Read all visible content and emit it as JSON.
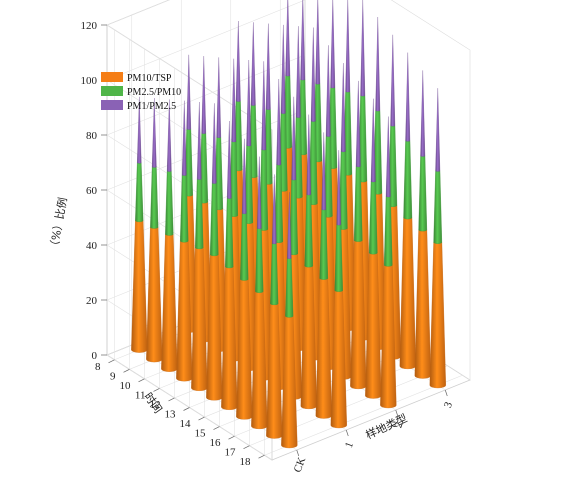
{
  "chart_data": {
    "type": "bar",
    "subtype": "3d-stacked-cones",
    "title": "",
    "x_axis": {
      "label": "样地类型",
      "categories": [
        "CK",
        "1",
        "2",
        "3"
      ]
    },
    "y_axis": {
      "label": "时间",
      "categories": [
        "8",
        "9",
        "10",
        "11",
        "12",
        "13",
        "14",
        "15",
        "16",
        "17",
        "18"
      ]
    },
    "z_axis": {
      "label": "（%）比例",
      "range": [
        0,
        120
      ],
      "ticks": [
        "0",
        "20",
        "40",
        "60",
        "80",
        "100",
        "120"
      ]
    },
    "grid": true,
    "legend": {
      "position": "top-left",
      "entries": [
        {
          "name": "PM10/TSP",
          "color": "#f57e16"
        },
        {
          "name": "PM2.5/PM10",
          "color": "#4fb548"
        },
        {
          "name": "PM1/PM2.5",
          "color": "#8a62b5"
        }
      ]
    },
    "series": [
      {
        "name": "PM10/TSP",
        "color": "#f57e16",
        "values": [
          [
            47,
            49,
            51,
            52
          ],
          [
            48,
            50,
            52,
            53
          ],
          [
            49,
            51,
            53,
            54
          ],
          [
            50,
            52,
            54,
            55
          ],
          [
            51,
            53,
            55,
            56
          ],
          [
            52,
            54,
            56,
            57
          ],
          [
            51,
            53,
            55,
            56
          ],
          [
            50,
            52,
            54,
            55
          ],
          [
            49,
            51,
            53,
            54
          ],
          [
            48,
            50,
            52,
            53
          ],
          [
            47,
            49,
            51,
            52
          ]
        ]
      },
      {
        "name": "PM2.5/PM10",
        "color": "#4fb548",
        "values": [
          [
            21,
            24,
            25,
            26
          ],
          [
            22,
            25,
            26,
            27
          ],
          [
            23,
            26,
            27,
            28
          ],
          [
            24,
            27,
            28,
            29
          ],
          [
            25,
            28,
            29,
            30
          ],
          [
            26,
            29,
            30,
            31
          ],
          [
            25,
            28,
            29,
            30
          ],
          [
            24,
            27,
            28,
            29
          ],
          [
            23,
            26,
            27,
            28
          ],
          [
            22,
            25,
            26,
            27
          ],
          [
            21,
            24,
            25,
            26
          ]
        ]
      },
      {
        "name": "PM1/PM2.5",
        "color": "#8a62b5",
        "values": [
          [
            24,
            27,
            29,
            30
          ],
          [
            25,
            28,
            30,
            31
          ],
          [
            26,
            29,
            31,
            32
          ],
          [
            27,
            30,
            32,
            33
          ],
          [
            28,
            31,
            33,
            34
          ],
          [
            29,
            32,
            34,
            35
          ],
          [
            28,
            31,
            33,
            34
          ],
          [
            27,
            30,
            32,
            33
          ],
          [
            26,
            29,
            31,
            32
          ],
          [
            25,
            28,
            30,
            31
          ],
          [
            24,
            27,
            29,
            30
          ]
        ]
      }
    ]
  }
}
